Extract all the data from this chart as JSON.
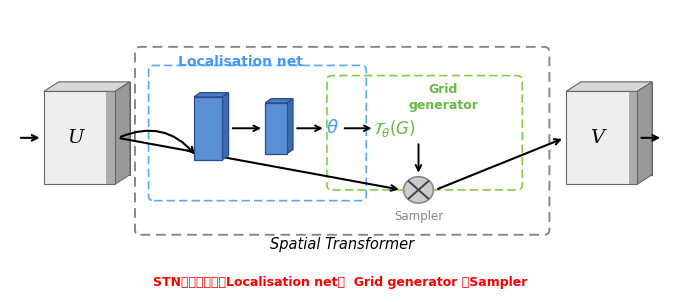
{
  "fig_width": 6.81,
  "fig_height": 3.02,
  "dpi": 100,
  "bg_color": "#ffffff",
  "title_text": "Spatial Transformer",
  "caption_parts": [
    {
      "text": "STN包括三部分：",
      "bold": true,
      "color": "#ff0000"
    },
    {
      "text": "Localisation net，",
      "bold": true,
      "color": "#ff0000"
    },
    {
      "text": "  Grid generator 和Sampler",
      "bold": true,
      "color": "#ff0000"
    }
  ],
  "caption_color": "#ff0000",
  "localisation_label": "Localisation net",
  "localisation_color": "#4499ff",
  "grid_generator_line1": "Grid",
  "grid_generator_line2": "generator",
  "grid_generator_color": "#66bb44",
  "sampler_label": "Sampler",
  "sampler_color": "#888888",
  "U_label": "U",
  "V_label": "V",
  "blue_front": "#5b8fd4",
  "blue_top": "#4a7abf",
  "blue_right": "#3d6aaa",
  "blue_edge": "#2a4d8f",
  "outer_box_color": "#888888",
  "loc_box_color": "#55aaff",
  "grid_box_color": "#88cc44",
  "theta_color": "#4499ff",
  "tg_color": "#66bb44"
}
